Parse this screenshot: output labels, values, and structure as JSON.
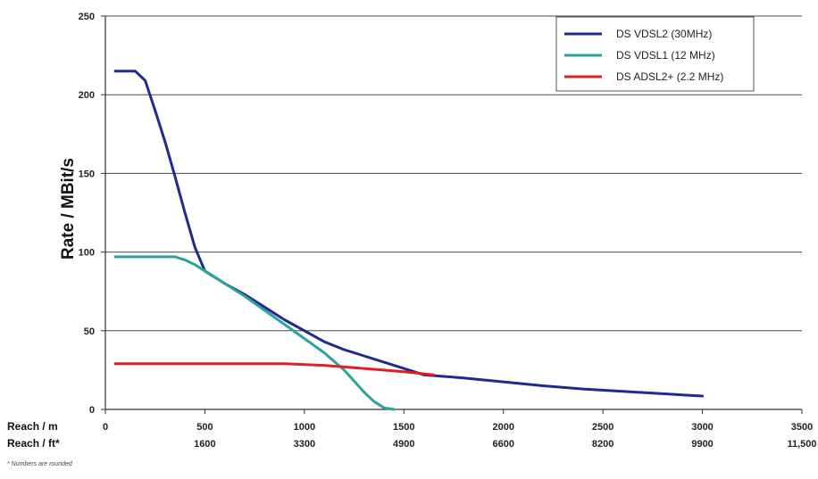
{
  "chart_data": {
    "type": "line",
    "ylabel": "Rate / MBit/s",
    "xlabel_primary": "Reach / m",
    "xlabel_secondary": "Reach / ft*",
    "ylim": [
      0,
      250
    ],
    "xlim": [
      0,
      3500
    ],
    "yticks": [
      "0",
      "50",
      "100",
      "150",
      "200",
      "250"
    ],
    "xticks_m": [
      {
        "x": 0,
        "label": "0"
      },
      {
        "x": 500,
        "label": "500"
      },
      {
        "x": 1000,
        "label": "1000"
      },
      {
        "x": 1500,
        "label": "1500"
      },
      {
        "x": 2000,
        "label": "2000"
      },
      {
        "x": 2500,
        "label": "2500"
      },
      {
        "x": 3000,
        "label": "3000"
      },
      {
        "x": 3500,
        "label": "3500"
      }
    ],
    "xticks_ft": [
      {
        "x": 500,
        "label": "1600"
      },
      {
        "x": 1000,
        "label": "3300"
      },
      {
        "x": 1500,
        "label": "4900"
      },
      {
        "x": 2000,
        "label": "6600"
      },
      {
        "x": 2500,
        "label": "8200"
      },
      {
        "x": 3000,
        "label": "9900"
      },
      {
        "x": 3500,
        "label": "11,500"
      }
    ],
    "grid": true,
    "legend_position": "top-right",
    "footnote": "* Numbers are rounded",
    "series": [
      {
        "name": "DS VDSL2 (30MHz)",
        "color": "#1f2a8c",
        "points": [
          [
            50,
            215
          ],
          [
            100,
            215
          ],
          [
            150,
            215
          ],
          [
            200,
            209
          ],
          [
            250,
            190
          ],
          [
            300,
            170
          ],
          [
            350,
            148
          ],
          [
            400,
            125
          ],
          [
            450,
            103
          ],
          [
            500,
            88
          ],
          [
            550,
            84
          ],
          [
            600,
            80
          ],
          [
            700,
            73
          ],
          [
            800,
            65
          ],
          [
            900,
            57
          ],
          [
            1000,
            50
          ],
          [
            1100,
            43
          ],
          [
            1200,
            38
          ],
          [
            1300,
            34
          ],
          [
            1400,
            30
          ],
          [
            1500,
            26
          ],
          [
            1600,
            22
          ],
          [
            1700,
            21
          ],
          [
            1800,
            20
          ],
          [
            2000,
            17.5
          ],
          [
            2200,
            15
          ],
          [
            2400,
            13
          ],
          [
            2600,
            11.5
          ],
          [
            2800,
            10
          ],
          [
            3000,
            8.5
          ]
        ]
      },
      {
        "name": "DS VDSL1 (12 MHz)",
        "color": "#2aa39a",
        "points": [
          [
            50,
            97
          ],
          [
            150,
            97
          ],
          [
            250,
            97
          ],
          [
            350,
            97
          ],
          [
            400,
            95
          ],
          [
            450,
            92
          ],
          [
            500,
            88
          ],
          [
            600,
            80
          ],
          [
            700,
            72
          ],
          [
            800,
            63
          ],
          [
            900,
            54
          ],
          [
            1000,
            45
          ],
          [
            1100,
            36
          ],
          [
            1200,
            25
          ],
          [
            1250,
            18
          ],
          [
            1300,
            11
          ],
          [
            1350,
            5
          ],
          [
            1400,
            1
          ],
          [
            1450,
            0
          ]
        ]
      },
      {
        "name": "DS ADSL2+ (2.2 MHz)",
        "color": "#e11f1f",
        "points": [
          [
            50,
            29
          ],
          [
            300,
            29
          ],
          [
            600,
            29
          ],
          [
            900,
            29
          ],
          [
            1100,
            28
          ],
          [
            1300,
            26
          ],
          [
            1500,
            24
          ],
          [
            1650,
            22
          ]
        ]
      }
    ]
  }
}
